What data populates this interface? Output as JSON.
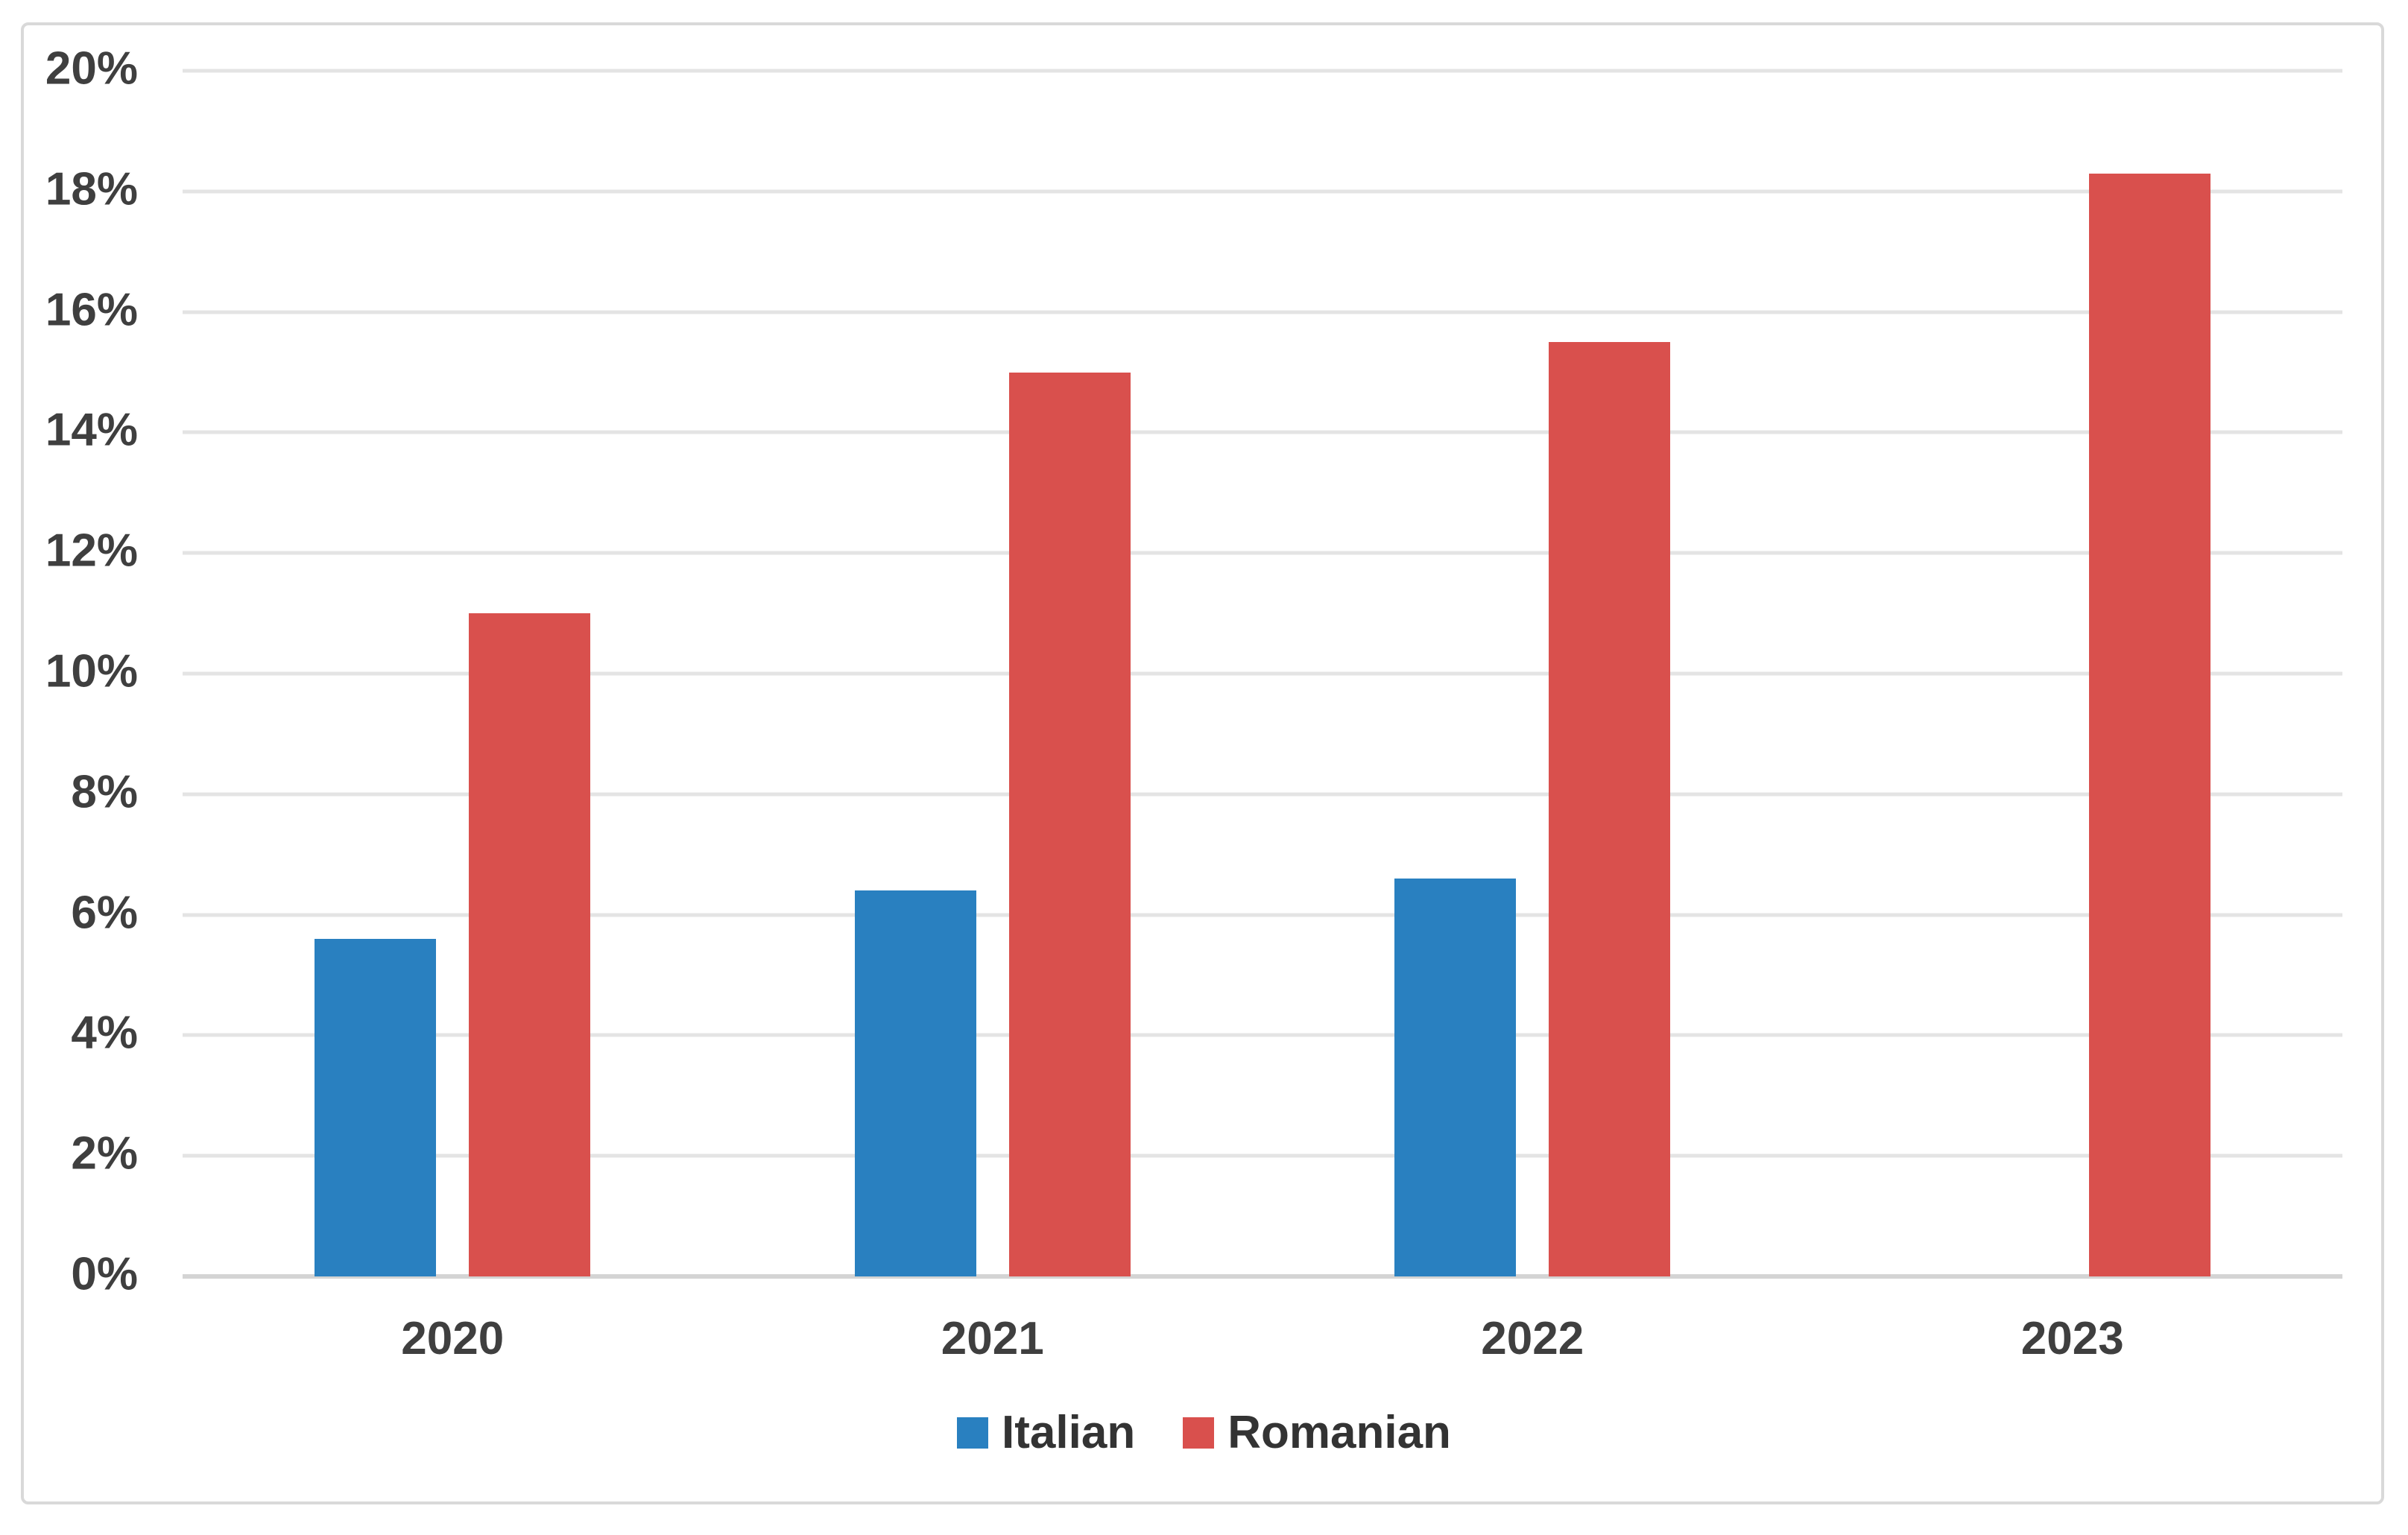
{
  "chart_data": {
    "type": "bar",
    "title": "",
    "xlabel": "",
    "ylabel": "",
    "categories": [
      "2020",
      "2021",
      "2022",
      "2023"
    ],
    "series": [
      {
        "name": "Italian",
        "color": "#2980C0",
        "values": [
          5.6,
          6.4,
          6.6,
          null
        ]
      },
      {
        "name": "Romanian",
        "color": "#D9504D",
        "values": [
          11.0,
          15.0,
          15.5,
          18.3
        ]
      }
    ],
    "ylim": [
      0,
      20
    ],
    "y_tick_step": 2,
    "y_tick_labels": [
      "0%",
      "2%",
      "4%",
      "6%",
      "8%",
      "10%",
      "12%",
      "14%",
      "16%",
      "18%",
      "20%"
    ],
    "grid": true,
    "legend_position": "bottom"
  }
}
